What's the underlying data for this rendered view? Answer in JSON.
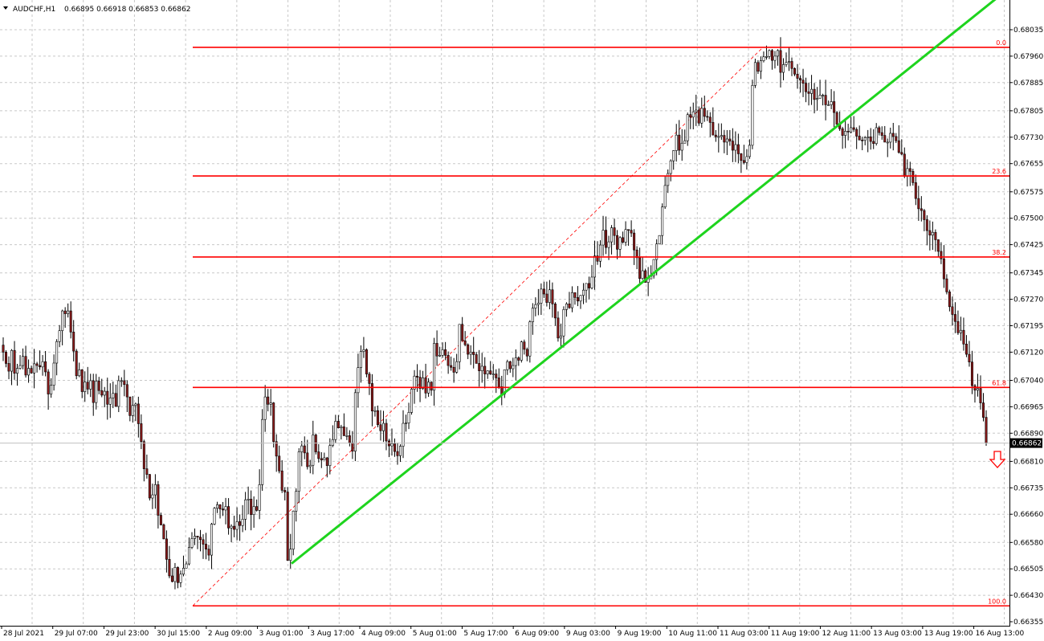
{
  "header": {
    "symbol": "AUDCHF,H1",
    "ohlc": "0.66895 0.66918 0.66853 0.66862"
  },
  "colors": {
    "background": "#ffffff",
    "grid": "#c8c8c8",
    "candle_up": "#000000",
    "candle_down": "#8b1a1a",
    "fib_line": "#ff0000",
    "trendline": "#1ed41e",
    "price_tag_bg": "#000000",
    "price_tag_text": "#ffffff"
  },
  "icons": {
    "down_arrow": "down-arrow-icon",
    "menu_triangle": "triangle-down-icon"
  },
  "chart_data": {
    "type": "candlestick",
    "title": "AUDCHF,H1",
    "timeframe": "H1",
    "grid": true,
    "ylim": [
      0.66355,
      0.681
    ],
    "y_ticks": [
      "0.68035",
      "0.67960",
      "0.67885",
      "0.67805",
      "0.67730",
      "0.67655",
      "0.67575",
      "0.67500",
      "0.67425",
      "0.67345",
      "0.67270",
      "0.67195",
      "0.67120",
      "0.67040",
      "0.66965",
      "0.66890",
      "0.66810",
      "0.66735",
      "0.66660",
      "0.66580",
      "0.66505",
      "0.66430",
      "0.66355"
    ],
    "x_ticks": [
      "28 Jul 2021",
      "29 Jul 07:00",
      "29 Jul 23:00",
      "30 Jul 15:00",
      "2 Aug 09:00",
      "3 Aug 01:00",
      "3 Aug 17:00",
      "4 Aug 09:00",
      "5 Aug 01:00",
      "5 Aug 17:00",
      "6 Aug 09:00",
      "9 Aug 03:00",
      "9 Aug 19:00",
      "10 Aug 11:00",
      "11 Aug 03:00",
      "11 Aug 19:00",
      "12 Aug 11:00",
      "13 Aug 03:00",
      "13 Aug 19:00",
      "16 Aug 13:00"
    ],
    "current_price": "0.66862",
    "current_price_value": 0.66862,
    "fibonacci": [
      {
        "label": "0.0",
        "price": 0.67985
      },
      {
        "label": "23.6",
        "price": 0.6762
      },
      {
        "label": "38.2",
        "price": 0.6739
      },
      {
        "label": "61.8",
        "price": 0.6702
      },
      {
        "label": "100.0",
        "price": 0.664
      }
    ],
    "fib_start_price": 0.664,
    "fib_end_price": 0.67985,
    "trendline": {
      "start_price": 0.6652,
      "end_price": 0.6815
    },
    "closes": [
      0.6712,
      0.67088,
      0.67066,
      0.67125,
      0.6706,
      0.67074,
      0.67082,
      0.67108,
      0.67055,
      0.67074,
      0.67061,
      0.67087,
      0.67082,
      0.67078,
      0.67093,
      0.67064,
      0.67001,
      0.67026,
      0.67089,
      0.6715,
      0.67181,
      0.67237,
      0.67229,
      0.67237,
      0.67177,
      0.67123,
      0.67053,
      0.6707,
      0.67008,
      0.67035,
      0.67015,
      0.67039,
      0.66977,
      0.67038,
      0.67011,
      0.66998,
      0.67009,
      0.66972,
      0.6699,
      0.67003,
      0.66966,
      0.67039,
      0.67039,
      0.67028,
      0.66993,
      0.6694,
      0.66969,
      0.66973,
      0.66917,
      0.66866,
      0.66789,
      0.66773,
      0.66706,
      0.66715,
      0.66744,
      0.66657,
      0.6663,
      0.6659,
      0.66532,
      0.66485,
      0.66469,
      0.66509,
      0.66466,
      0.6649,
      0.66507,
      0.66519,
      0.66566,
      0.66591,
      0.66598,
      0.66595,
      0.66588,
      0.66575,
      0.66561,
      0.66544,
      0.66632,
      0.66677,
      0.66687,
      0.66675,
      0.66672,
      0.66682,
      0.66621,
      0.66626,
      0.66617,
      0.66639,
      0.66628,
      0.66646,
      0.66701,
      0.66703,
      0.66659,
      0.66682,
      0.66671,
      0.66744,
      0.66929,
      0.66993,
      0.66972,
      0.66976,
      0.66866,
      0.66825,
      0.66783,
      0.66728,
      0.66723,
      0.66529,
      0.66561,
      0.66669,
      0.66725,
      0.66837,
      0.66854,
      0.66834,
      0.66795,
      0.66799,
      0.66885,
      0.66837,
      0.66818,
      0.66814,
      0.6682,
      0.66798,
      0.66855,
      0.66872,
      0.66924,
      0.66905,
      0.66908,
      0.66883,
      0.66883,
      0.66863,
      0.66839,
      0.67005,
      0.67076,
      0.67122,
      0.67127,
      0.67058,
      0.67031,
      0.66953,
      0.66954,
      0.66914,
      0.66897,
      0.66918,
      0.66868,
      0.66854,
      0.6686,
      0.66838,
      0.66826,
      0.66853,
      0.66918,
      0.66919,
      0.66949,
      0.67015,
      0.67052,
      0.67049,
      0.67017,
      0.67047,
      0.67004,
      0.67035,
      0.67012,
      0.67145,
      0.67109,
      0.67111,
      0.67127,
      0.67111,
      0.67082,
      0.67077,
      0.67063,
      0.67093,
      0.67199,
      0.67152,
      0.67141,
      0.67114,
      0.6712,
      0.67113,
      0.67088,
      0.67067,
      0.6708,
      0.67058,
      0.67067,
      0.67058,
      0.67058,
      0.67047,
      0.67022,
      0.67001,
      0.6707,
      0.67093,
      0.67073,
      0.67082,
      0.67104,
      0.67097,
      0.67149,
      0.67128,
      0.67109,
      0.67206,
      0.67245,
      0.67255,
      0.67259,
      0.67299,
      0.67285,
      0.67261,
      0.67297,
      0.67257,
      0.67217,
      0.6716,
      0.67166,
      0.67241,
      0.67257,
      0.67246,
      0.67289,
      0.67275,
      0.67265,
      0.67281,
      0.67296,
      0.67315,
      0.67302,
      0.67333,
      0.67393,
      0.67378,
      0.67424,
      0.67466,
      0.67417,
      0.67433,
      0.67473,
      0.67451,
      0.67412,
      0.67445,
      0.67432,
      0.67468,
      0.67466,
      0.67458,
      0.6741,
      0.67388,
      0.67329,
      0.67351,
      0.67318,
      0.67328,
      0.67337,
      0.67383,
      0.67427,
      0.67451,
      0.67532,
      0.67593,
      0.67627,
      0.67663,
      0.67692,
      0.67736,
      0.67693,
      0.67713,
      0.6772,
      0.67794,
      0.67787,
      0.67802,
      0.67807,
      0.6777,
      0.67812,
      0.67789,
      0.67787,
      0.67772,
      0.67736,
      0.67731,
      0.67732,
      0.67735,
      0.67716,
      0.67725,
      0.67719,
      0.67693,
      0.67709,
      0.67683,
      0.67664,
      0.67658,
      0.67675,
      0.67707,
      0.67877,
      0.67942,
      0.67917,
      0.67947,
      0.67958,
      0.67959,
      0.67976,
      0.67948,
      0.6796,
      0.67976,
      0.67914,
      0.67936,
      0.67942,
      0.67945,
      0.67925,
      0.67909,
      0.67897,
      0.67892,
      0.67883,
      0.67859,
      0.67854,
      0.67866,
      0.67837,
      0.6784,
      0.67849,
      0.67849,
      0.67822,
      0.67822,
      0.67831,
      0.678,
      0.67767,
      0.67754,
      0.67735,
      0.67747,
      0.67745,
      0.67757,
      0.67752,
      0.67733,
      0.67722,
      0.67721,
      0.67728,
      0.67731,
      0.67718,
      0.67712,
      0.67757,
      0.67743,
      0.67735,
      0.67716,
      0.67716,
      0.67741,
      0.67732,
      0.6772,
      0.67687,
      0.67682,
      0.67619,
      0.67641,
      0.67633,
      0.67601,
      0.67556,
      0.67527,
      0.67522,
      0.67496,
      0.67465,
      0.67452,
      0.6746,
      0.67439,
      0.67406,
      0.67385,
      0.67328,
      0.67291,
      0.67249,
      0.67227,
      0.67207,
      0.67175,
      0.67182,
      0.67143,
      0.67114,
      0.67092,
      0.67025,
      0.67012,
      0.67017,
      0.66976,
      0.66935,
      0.66862
    ]
  }
}
